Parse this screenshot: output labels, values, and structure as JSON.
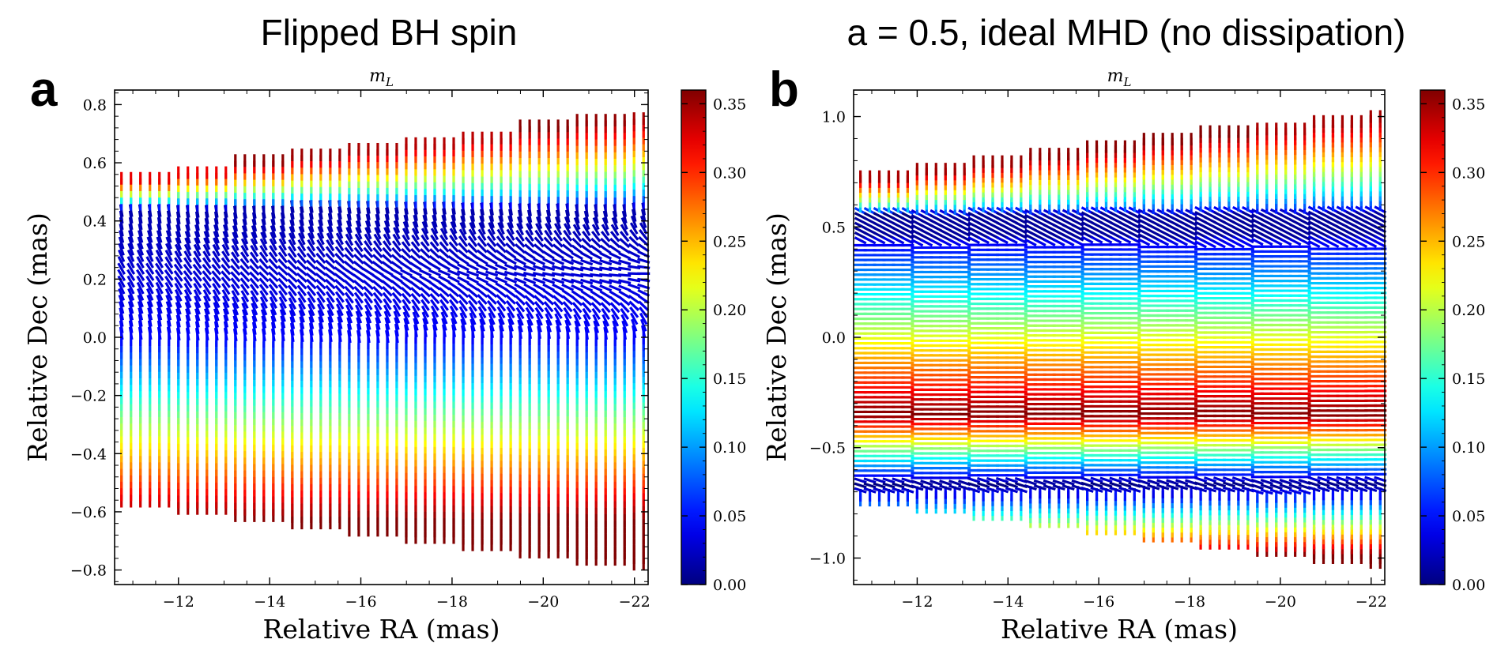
{
  "panels": [
    {
      "title": "Flipped BH spin",
      "letter": "a"
    },
    {
      "title": "a = 0.5, ideal MHD (no dissipation)",
      "letter": "b"
    }
  ],
  "chart_data": [
    {
      "type": "quiver",
      "title": "Flipped BH spin",
      "panel_label": "a",
      "subtitle": "m_L",
      "xlabel": "Relative RA (mas)",
      "ylabel": "Relative Dec (mas)",
      "xlim": [
        -10.6,
        -22.3
      ],
      "ylim": [
        -0.85,
        0.85
      ],
      "xticks": [
        -12,
        -14,
        -16,
        -18,
        -20,
        -22
      ],
      "xtick_labels": [
        "−12",
        "−14",
        "−16",
        "−18",
        "−20",
        "−22"
      ],
      "yticks": [
        0.8,
        0.6,
        0.4,
        0.2,
        0.0,
        -0.2,
        -0.4,
        -0.6,
        -0.8
      ],
      "ytick_labels": [
        "0.8",
        "0.6",
        "0.4",
        "0.2",
        "0.0",
        "−0.2",
        "−0.4",
        "−0.6",
        "−0.8"
      ],
      "colorbar": {
        "label": "m_L",
        "min": 0.0,
        "max": 0.36,
        "colormap": "jet",
        "ticks": [
          0.0,
          0.05,
          0.1,
          0.15,
          0.2,
          0.25,
          0.3,
          0.35
        ],
        "tick_labels": [
          "0.00",
          "0.05",
          "0.10",
          "0.15",
          "0.20",
          "0.25",
          "0.30",
          "0.35"
        ]
      },
      "field": {
        "x_start": -10.75,
        "x_end": -22.2,
        "x_count": 56,
        "y_step": 0.0222,
        "top_edge": [
          [
            -10.7,
            0.55
          ],
          [
            -22.2,
            0.77
          ]
        ],
        "bottom_edge": [
          [
            -10.7,
            -0.55
          ],
          [
            -22.2,
            -0.78
          ]
        ],
        "polarization_fraction_top": 0.36,
        "polarization_fraction_min": 0.0,
        "polarization_fraction_bottom": 0.36,
        "null_band_dec": [
          0.0,
          0.45
        ],
        "evpa_pattern": "vertical in lower body, horizontal near null band, vertical near top edge"
      }
    },
    {
      "type": "quiver",
      "title": "a = 0.5, ideal MHD (no dissipation)",
      "panel_label": "b",
      "subtitle": "m_L",
      "xlabel": "Relative RA (mas)",
      "ylabel": "Relative Dec (mas)",
      "xlim": [
        -10.6,
        -22.3
      ],
      "ylim": [
        -1.12,
        1.12
      ],
      "xticks": [
        -12,
        -14,
        -16,
        -18,
        -20,
        -22
      ],
      "xtick_labels": [
        "−12",
        "−14",
        "−16",
        "−18",
        "−20",
        "−22"
      ],
      "yticks": [
        1.0,
        0.5,
        0.0,
        -0.5,
        -1.0
      ],
      "ytick_labels": [
        "1.0",
        "0.5",
        "0.0",
        "−0.5",
        "−1.0"
      ],
      "colorbar": {
        "label": "m_L",
        "min": 0.0,
        "max": 0.36,
        "colormap": "jet",
        "ticks": [
          0.0,
          0.05,
          0.1,
          0.15,
          0.2,
          0.25,
          0.3,
          0.35
        ],
        "tick_labels": [
          "0.00",
          "0.05",
          "0.10",
          "0.15",
          "0.20",
          "0.25",
          "0.30",
          "0.35"
        ]
      },
      "field": {
        "x_start": -10.75,
        "x_end": -22.2,
        "x_count": 56,
        "y_step": 0.0222,
        "top_edge": [
          [
            -10.7,
            0.72
          ],
          [
            -22.2,
            1.02
          ]
        ],
        "bottom_edge": [
          [
            -10.7,
            -0.72
          ],
          [
            -22.2,
            -1.02
          ]
        ],
        "null_band_dec": [
          0.45,
          0.55
        ],
        "lower_null_dec": -0.67,
        "peak_dec": -0.35,
        "evpa_pattern": "horizontal throughout body, twisting near null bands, vertical at edges"
      }
    }
  ]
}
